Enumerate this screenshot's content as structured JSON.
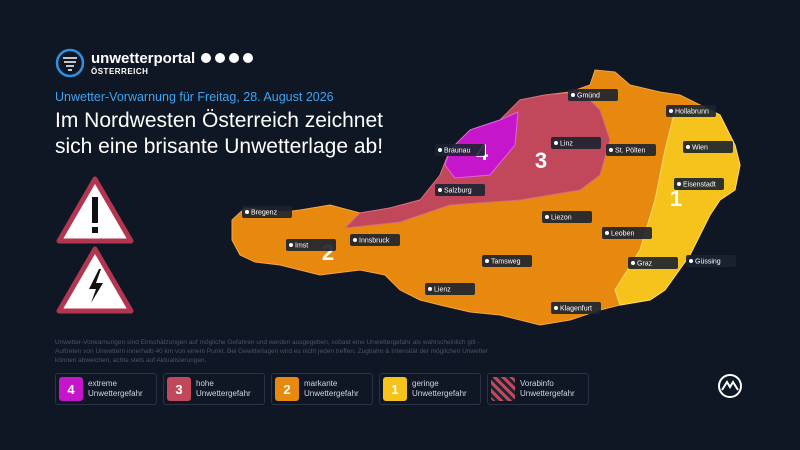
{
  "brand": {
    "name": "unwetterportal",
    "sub": "ÖSTERREICH"
  },
  "subtitle": "Unwetter-Vorwarnung für Freitag, 28. August 2026",
  "headline": [
    "Im Nordwesten Österreich zeichnet",
    "sich eine brisante Unwetterlage ab!"
  ],
  "map": {
    "zones": [
      "4",
      "3",
      "2",
      "1"
    ],
    "cities": [
      "Gmünd",
      "Hollabrunn",
      "Braunau",
      "Linz",
      "St. Pölten",
      "Wien",
      "Salzburg",
      "Eisenstadt",
      "Bregenz",
      "Liezon",
      "Leoben",
      "Imst",
      "Innsbruck",
      "Tamsweg",
      "Graz",
      "Güssing",
      "Lienz",
      "Klagenfurt"
    ]
  },
  "disclaimer": "Unwetter-Vorwarnungen sind Einschätzungen auf mögliche Gefahren und werden ausgegeben, sobald eine Unwettergefahr als wahrscheinlich gilt - Auftreten von Unwettern innerhalb 40 km von einem Punkt. Bei Gewitterlagen wird es nicht jeden treffen. Zugbahn & Intensität der möglichen Unwetter können abweichen, achte stets auf Aktualisierungen.",
  "legend": [
    {
      "level": "4",
      "label": [
        "extreme",
        "Unwettergefahr"
      ]
    },
    {
      "level": "3",
      "label": [
        "hohe",
        "Unwettergefahr"
      ]
    },
    {
      "level": "2",
      "label": [
        "markante",
        "Unwettergefahr"
      ]
    },
    {
      "level": "1",
      "label": [
        "geringe",
        "Unwettergefahr"
      ]
    },
    {
      "label": [
        "Vorabinfo",
        "Unwettergefahr"
      ]
    }
  ]
}
